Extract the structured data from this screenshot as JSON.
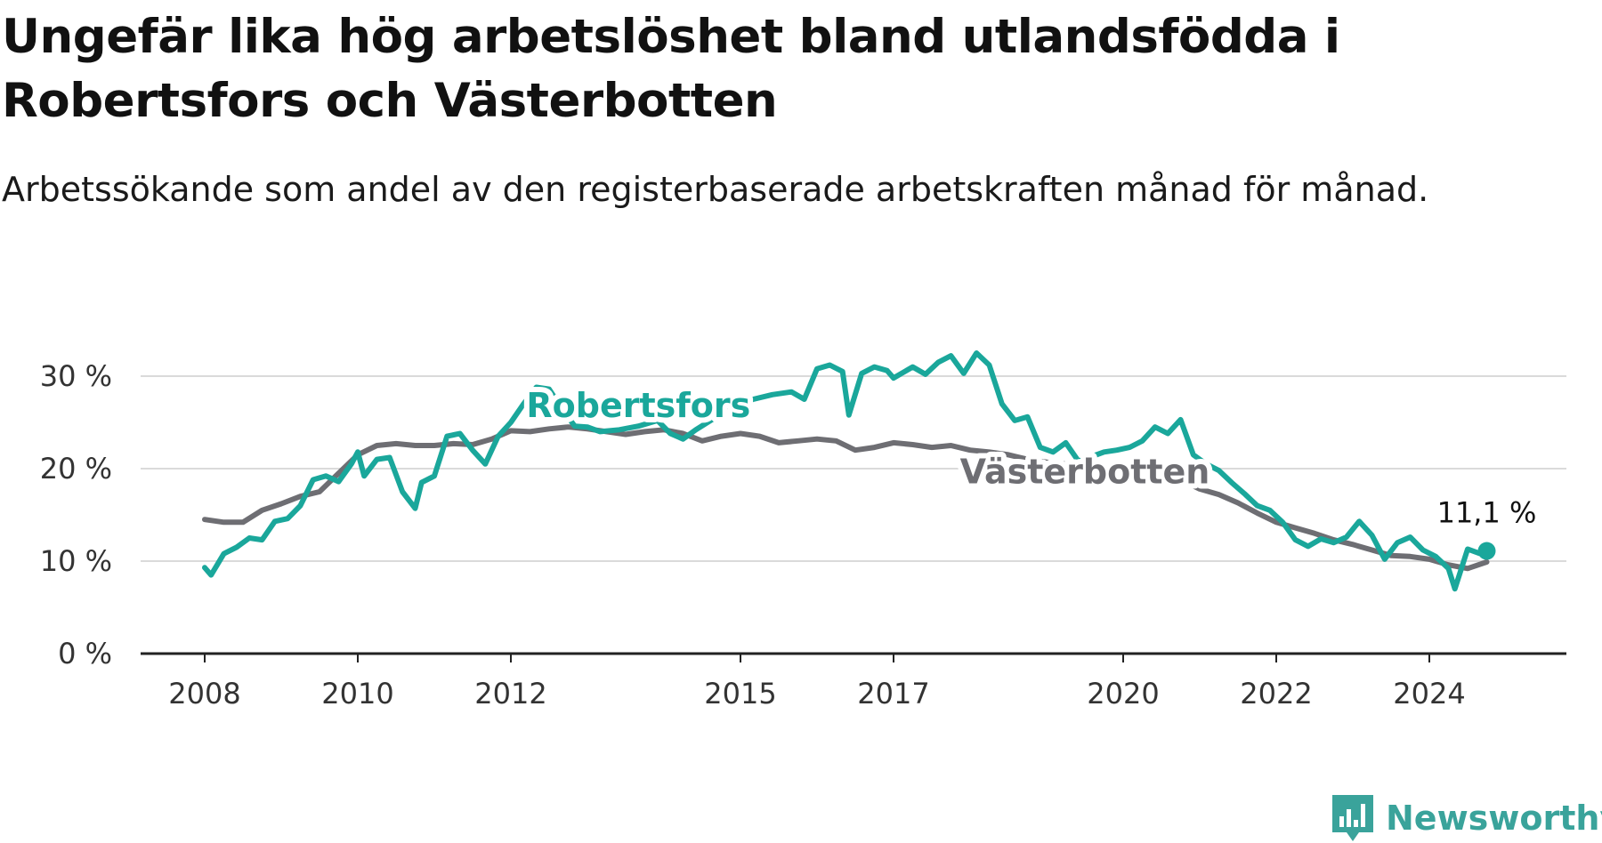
{
  "title": "Ungefär lika hög arbetslöshet bland utlandsfödda i Robertsfors och Västerbotten",
  "subtitle": "Arbetssökande som andel av den registerbaserade arbetskraften månad för månad.",
  "logo": {
    "text": "Newsworthy",
    "icon": "bar-chart-logo-icon",
    "color": "#3aa39b"
  },
  "chart_data": {
    "type": "line",
    "xlabel": "",
    "ylabel": "",
    "ylim": [
      0,
      30
    ],
    "xlim": [
      "2008-01",
      "2024-12"
    ],
    "grid": true,
    "y_ticks": [
      {
        "value": 0,
        "label": "0 %"
      },
      {
        "value": 10,
        "label": "10 %"
      },
      {
        "value": 20,
        "label": "20 %"
      },
      {
        "value": 30,
        "label": "30 %"
      }
    ],
    "x_ticks": [
      {
        "value": "2008-01",
        "label": "2008"
      },
      {
        "value": "2010-01",
        "label": "2010"
      },
      {
        "value": "2012-01",
        "label": "2012"
      },
      {
        "value": "2015-01",
        "label": "2015"
      },
      {
        "value": "2017-01",
        "label": "2017"
      },
      {
        "value": "2020-01",
        "label": "2020"
      },
      {
        "value": "2022-01",
        "label": "2022"
      },
      {
        "value": "2024-01",
        "label": "2024"
      }
    ],
    "last_value_label": "11,1 %",
    "series": [
      {
        "name": "Västerbotten",
        "color": "#6e6e73",
        "points": [
          [
            "2008-01",
            14.5
          ],
          [
            "2008-04",
            14.2
          ],
          [
            "2008-07",
            14.2
          ],
          [
            "2008-10",
            15.5
          ],
          [
            "2009-01",
            16.2
          ],
          [
            "2009-04",
            17.0
          ],
          [
            "2009-07",
            17.5
          ],
          [
            "2009-10",
            19.5
          ],
          [
            "2010-01",
            21.5
          ],
          [
            "2010-04",
            22.5
          ],
          [
            "2010-07",
            22.7
          ],
          [
            "2010-10",
            22.5
          ],
          [
            "2011-01",
            22.5
          ],
          [
            "2011-04",
            22.7
          ],
          [
            "2011-07",
            22.6
          ],
          [
            "2011-10",
            23.2
          ],
          [
            "2012-01",
            24.1
          ],
          [
            "2012-04",
            24.0
          ],
          [
            "2012-07",
            24.3
          ],
          [
            "2012-10",
            24.5
          ],
          [
            "2013-01",
            24.3
          ],
          [
            "2013-04",
            24.0
          ],
          [
            "2013-07",
            23.7
          ],
          [
            "2013-10",
            24.0
          ],
          [
            "2014-01",
            24.2
          ],
          [
            "2014-04",
            23.8
          ],
          [
            "2014-07",
            23.0
          ],
          [
            "2014-10",
            23.5
          ],
          [
            "2015-01",
            23.8
          ],
          [
            "2015-04",
            23.5
          ],
          [
            "2015-07",
            22.8
          ],
          [
            "2015-10",
            23.0
          ],
          [
            "2016-01",
            23.2
          ],
          [
            "2016-04",
            23.0
          ],
          [
            "2016-07",
            22.0
          ],
          [
            "2016-10",
            22.3
          ],
          [
            "2017-01",
            22.8
          ],
          [
            "2017-04",
            22.6
          ],
          [
            "2017-07",
            22.3
          ],
          [
            "2017-10",
            22.5
          ],
          [
            "2018-01",
            22.0
          ],
          [
            "2018-04",
            21.8
          ],
          [
            "2018-07",
            21.5
          ],
          [
            "2018-10",
            21.0
          ],
          [
            "2019-01",
            20.7
          ],
          [
            "2019-04",
            20.5
          ],
          [
            "2019-07",
            20.3
          ],
          [
            "2019-10",
            20.0
          ],
          [
            "2020-01",
            19.5
          ],
          [
            "2020-04",
            19.3
          ],
          [
            "2020-07",
            19.0
          ],
          [
            "2020-10",
            18.8
          ],
          [
            "2021-01",
            17.8
          ],
          [
            "2021-04",
            17.2
          ],
          [
            "2021-07",
            16.3
          ],
          [
            "2021-10",
            15.2
          ],
          [
            "2022-01",
            14.2
          ],
          [
            "2022-04",
            13.6
          ],
          [
            "2022-07",
            13.0
          ],
          [
            "2022-10",
            12.3
          ],
          [
            "2023-01",
            11.8
          ],
          [
            "2023-04",
            11.2
          ],
          [
            "2023-07",
            10.6
          ],
          [
            "2023-10",
            10.5
          ],
          [
            "2024-01",
            10.2
          ],
          [
            "2024-04",
            9.6
          ],
          [
            "2024-07",
            9.2
          ],
          [
            "2024-10",
            9.9
          ]
        ]
      },
      {
        "name": "Robertsfors",
        "color": "#1aa79b",
        "points": [
          [
            "2008-01",
            9.3
          ],
          [
            "2008-02",
            8.5
          ],
          [
            "2008-04",
            10.8
          ],
          [
            "2008-06",
            11.5
          ],
          [
            "2008-08",
            12.5
          ],
          [
            "2008-10",
            12.3
          ],
          [
            "2008-12",
            14.3
          ],
          [
            "2009-02",
            14.6
          ],
          [
            "2009-04",
            16.0
          ],
          [
            "2009-06",
            18.8
          ],
          [
            "2009-08",
            19.2
          ],
          [
            "2009-10",
            18.6
          ],
          [
            "2009-12",
            20.5
          ],
          [
            "2010-01",
            21.8
          ],
          [
            "2010-02",
            19.2
          ],
          [
            "2010-04",
            21.0
          ],
          [
            "2010-06",
            21.2
          ],
          [
            "2010-08",
            17.5
          ],
          [
            "2010-10",
            15.7
          ],
          [
            "2010-11",
            18.5
          ],
          [
            "2011-01",
            19.2
          ],
          [
            "2011-03",
            23.5
          ],
          [
            "2011-05",
            23.8
          ],
          [
            "2011-07",
            22.0
          ],
          [
            "2011-09",
            20.5
          ],
          [
            "2011-11",
            23.5
          ],
          [
            "2012-01",
            25.0
          ],
          [
            "2012-03",
            27.0
          ],
          [
            "2012-05",
            28.8
          ],
          [
            "2012-07",
            28.6
          ],
          [
            "2012-09",
            26.5
          ],
          [
            "2012-11",
            24.6
          ],
          [
            "2013-01",
            24.5
          ],
          [
            "2013-03",
            24.0
          ],
          [
            "2013-06",
            24.2
          ],
          [
            "2013-09",
            24.6
          ],
          [
            "2013-12",
            25.2
          ],
          [
            "2014-02",
            23.8
          ],
          [
            "2014-04",
            23.2
          ],
          [
            "2014-06",
            24.2
          ],
          [
            "2014-09",
            25.5
          ],
          [
            "2014-12",
            26.8
          ],
          [
            "2015-03",
            27.5
          ],
          [
            "2015-06",
            28.0
          ],
          [
            "2015-09",
            28.3
          ],
          [
            "2015-11",
            27.5
          ],
          [
            "2016-01",
            30.8
          ],
          [
            "2016-03",
            31.2
          ],
          [
            "2016-05",
            30.5
          ],
          [
            "2016-06",
            25.8
          ],
          [
            "2016-08",
            30.3
          ],
          [
            "2016-10",
            31.0
          ],
          [
            "2016-12",
            30.6
          ],
          [
            "2017-01",
            29.8
          ],
          [
            "2017-04",
            31.0
          ],
          [
            "2017-06",
            30.2
          ],
          [
            "2017-08",
            31.5
          ],
          [
            "2017-10",
            32.2
          ],
          [
            "2017-12",
            30.3
          ],
          [
            "2018-02",
            32.5
          ],
          [
            "2018-04",
            31.2
          ],
          [
            "2018-06",
            27.0
          ],
          [
            "2018-08",
            25.2
          ],
          [
            "2018-10",
            25.6
          ],
          [
            "2018-12",
            22.3
          ],
          [
            "2019-02",
            21.8
          ],
          [
            "2019-04",
            22.8
          ],
          [
            "2019-06",
            20.8
          ],
          [
            "2019-08",
            21.3
          ],
          [
            "2019-10",
            21.8
          ],
          [
            "2019-12",
            22.0
          ],
          [
            "2020-02",
            22.3
          ],
          [
            "2020-04",
            23.0
          ],
          [
            "2020-06",
            24.5
          ],
          [
            "2020-08",
            23.8
          ],
          [
            "2020-10",
            25.3
          ],
          [
            "2020-12",
            21.5
          ],
          [
            "2021-02",
            20.5
          ],
          [
            "2021-04",
            19.8
          ],
          [
            "2021-06",
            18.5
          ],
          [
            "2021-08",
            17.3
          ],
          [
            "2021-10",
            16.0
          ],
          [
            "2021-12",
            15.5
          ],
          [
            "2022-02",
            14.2
          ],
          [
            "2022-04",
            12.3
          ],
          [
            "2022-06",
            11.6
          ],
          [
            "2022-08",
            12.4
          ],
          [
            "2022-10",
            12.0
          ],
          [
            "2022-12",
            12.6
          ],
          [
            "2023-02",
            14.3
          ],
          [
            "2023-04",
            12.8
          ],
          [
            "2023-06",
            10.2
          ],
          [
            "2023-08",
            12.0
          ],
          [
            "2023-10",
            12.6
          ],
          [
            "2023-12",
            11.2
          ],
          [
            "2024-02",
            10.5
          ],
          [
            "2024-04",
            9.2
          ],
          [
            "2024-05",
            7.0
          ],
          [
            "2024-07",
            11.3
          ],
          [
            "2024-09",
            10.8
          ],
          [
            "2024-10",
            11.1
          ]
        ]
      }
    ]
  }
}
